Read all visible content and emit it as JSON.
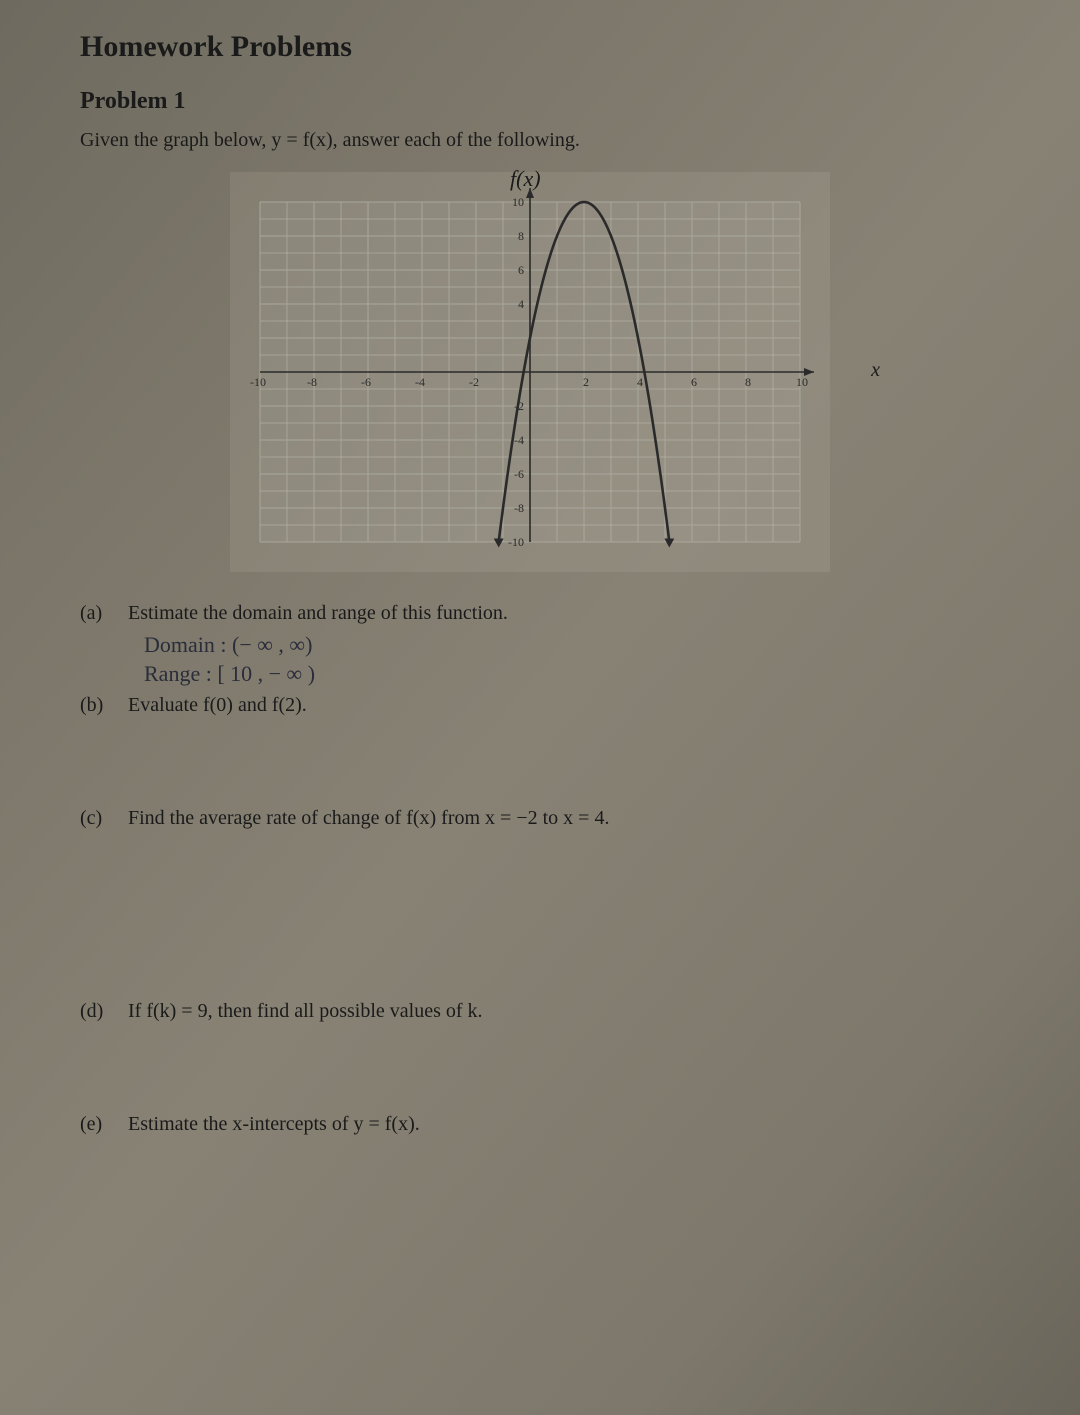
{
  "title": "Homework Problems",
  "problem_label": "Problem 1",
  "intro": "Given the graph below, y = f(x), answer each of the following.",
  "graph": {
    "title": "f(x)",
    "axis_label_x": "x",
    "xlim": [
      -10,
      10
    ],
    "ylim": [
      -10,
      10
    ],
    "xticks": [
      -10,
      -8,
      -6,
      -4,
      -2,
      2,
      4,
      6,
      8,
      10
    ],
    "yticks": [
      -10,
      -8,
      -6,
      -4,
      -2,
      2,
      4,
      6,
      8,
      10
    ],
    "ytick_labels": [
      -10,
      -8,
      -6,
      -4,
      -2,
      "",
      4,
      6,
      8,
      10
    ],
    "grid_step": 1,
    "grid_color": "#a9a79c",
    "minor_grid_color": "#c0bdb1",
    "axis_color": "#2a2a2a",
    "curve_color": "#2a2a2a",
    "curve_stroke": 2.6,
    "label_fontsize": 12,
    "curve": {
      "type": "parabola",
      "vertex": [
        2,
        10
      ],
      "a": -2,
      "x_draw_min": -1.16,
      "x_draw_max": 5.16
    }
  },
  "parts": {
    "a": {
      "label": "(a)",
      "text": "Estimate the domain and range of this function."
    },
    "b": {
      "label": "(b)",
      "text": "Evaluate f(0) and f(2)."
    },
    "c": {
      "label": "(c)",
      "text": "Find the average rate of change of f(x) from x = −2 to x = 4."
    },
    "d": {
      "label": "(d)",
      "text": "If f(k) = 9, then find all possible values of k."
    },
    "e": {
      "label": "(e)",
      "text": "Estimate the x-intercepts of y = f(x)."
    }
  },
  "handwritten": {
    "domain": "Domain : (− ∞ , ∞)",
    "range": "Range  : [ 10 , − ∞ )"
  }
}
